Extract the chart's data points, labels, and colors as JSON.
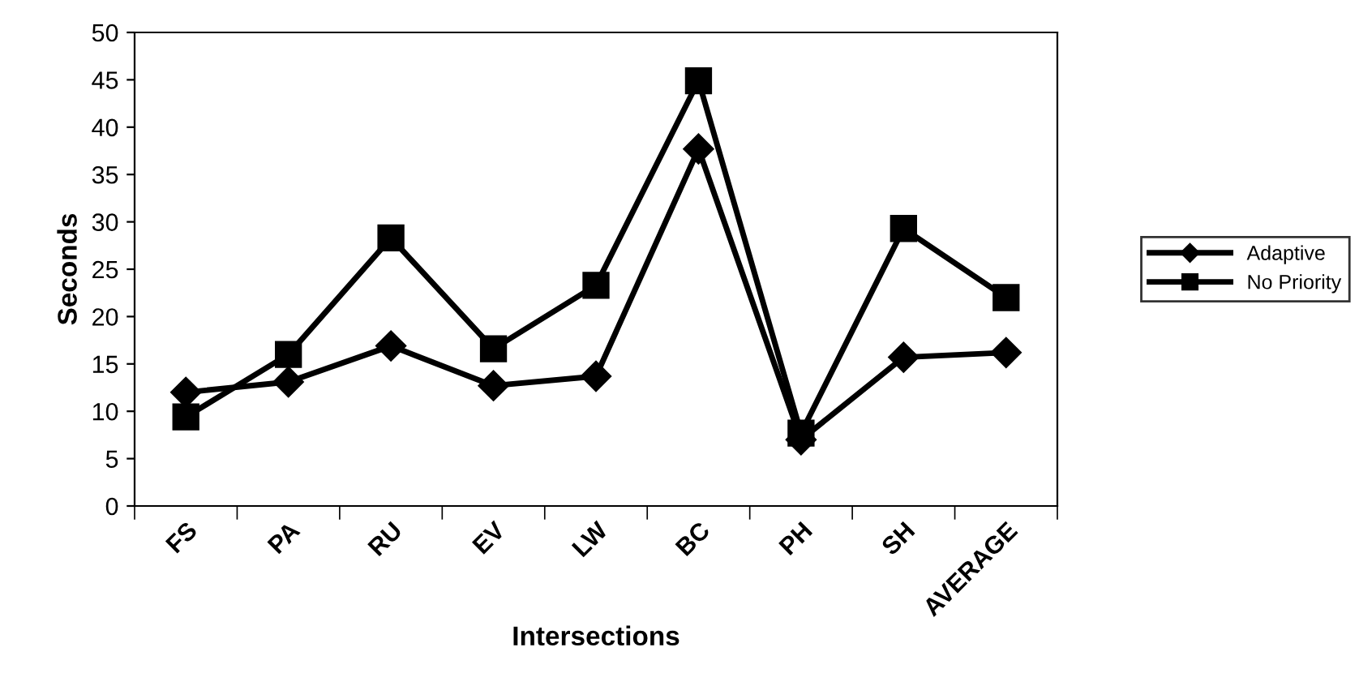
{
  "chart_data": {
    "type": "line",
    "xlabel": "Intersections",
    "ylabel": "Seconds",
    "categories": [
      "FS",
      "PA",
      "RU",
      "EV",
      "LW",
      "BC",
      "PH",
      "SH",
      "AVERAGE"
    ],
    "series": [
      {
        "name": "Adaptive",
        "color": "#000000",
        "marker": "diamond",
        "values": [
          12.0,
          13.1,
          16.9,
          12.7,
          13.7,
          37.7,
          7.0,
          15.7,
          16.2
        ]
      },
      {
        "name": "No Priority",
        "color": "#000000",
        "marker": "square",
        "values": [
          9.4,
          16.0,
          28.3,
          16.6,
          23.3,
          44.9,
          7.7,
          29.3,
          22.0
        ]
      }
    ],
    "ylim": [
      0,
      50
    ],
    "yticks": [
      0,
      5,
      10,
      15,
      20,
      25,
      30,
      35,
      40,
      45,
      50
    ],
    "grid": false,
    "legend": "right",
    "line_style": "solid"
  }
}
